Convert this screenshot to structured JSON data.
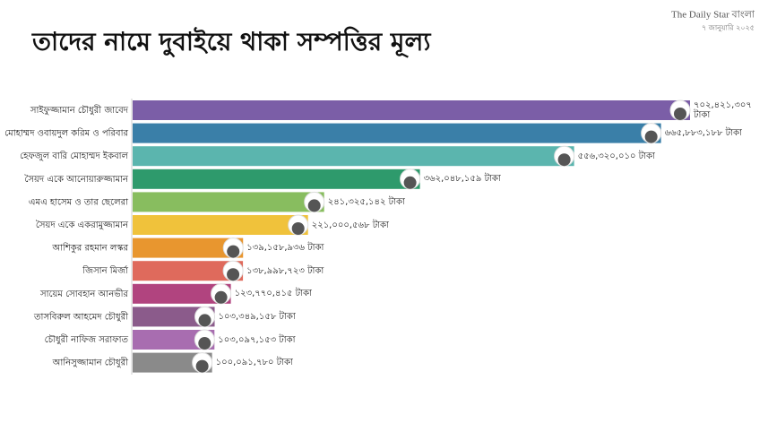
{
  "chart_data": {
    "type": "bar",
    "orientation": "horizontal",
    "title": "তাদের নামে দুবাইয়ে থাকা সম্পত্তির মূল্য",
    "source": "The Daily Star বাংলা",
    "date": "৭ জানুয়ারি ২০২৫",
    "categories": [
      "সাইফুজ্জামান চৌধুরী জাবেদ",
      "মোহাম্মদ ওবায়দুল করিম ও পরিবার",
      "হেফজুল বারি মোহাম্মদ ইকবাল",
      "সৈয়দ একে আনোয়ারুজ্জামান",
      "এমএ হাসেম ও তার ছেলেরা",
      "সৈয়দ একে একরামুজ্জামান",
      "আশিকুর রহমান লস্কর",
      "জিসান মির্জা",
      "সায়েম সোবহান আনভীর",
      "তাসবিরুল আহমেদ চৌধুরী",
      "চৌধুরী নাফিজ সরাফাত",
      "আনিসুজ্জামান চৌধুরী"
    ],
    "values": [
      702421307,
      665883188,
      556320010,
      362048159,
      241325142,
      221000568,
      139158936,
      138998723,
      123770415,
      103349158,
      103097153,
      100091780
    ],
    "value_labels": [
      "৭০২,৪২১,৩০৭ টাকা",
      "৬৬৫,৮৮৩,১৮৮ টাকা",
      "৫৫৬,৩২০,০১০ টাকা",
      "৩৬২,০৪৮,১৫৯ টাকা",
      "২৪১,৩২৫,১৪২ টাকা",
      "২২১,০০০,৫৬৮ টাকা",
      "১৩৯,১৫৮,৯৩৬ টাকা",
      "১৩৮,৯৯৮,৭২৩ টাকা",
      "১২৩,৭৭০,৪১৫ টাকা",
      "১০৩,৩৪৯,১৫৮ টাকা",
      "১০৩,০৯৭,১৫৩ টাকা",
      "১০০,০৯১,৭৮০ টাকা"
    ],
    "colors": [
      "#7b5ea7",
      "#3a7fa8",
      "#5bb5ae",
      "#2e9a6c",
      "#88bd5f",
      "#f0c23b",
      "#e8962f",
      "#df6a5c",
      "#b1447f",
      "#8b5b8b",
      "#a86db0",
      "#8a8a8a"
    ]
  }
}
